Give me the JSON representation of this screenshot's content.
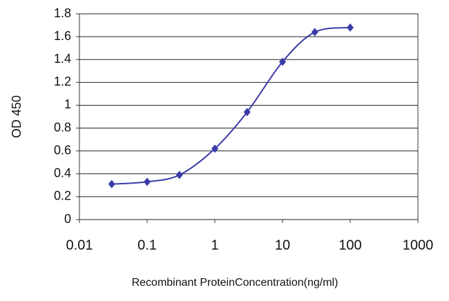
{
  "chart_data": {
    "type": "line",
    "x_label": "Recombinant ProteinConcentration(ng/ml)",
    "y_label": "OD 450",
    "x": [
      0.03,
      0.1,
      0.3,
      1,
      3,
      10,
      30,
      100
    ],
    "values": [
      0.31,
      0.33,
      0.39,
      0.62,
      0.94,
      1.38,
      1.64,
      1.68
    ],
    "color": "#3a3aa8",
    "xscale": "log",
    "xlim": [
      0.01,
      1000
    ],
    "xticks": [
      0.01,
      0.1,
      1,
      10,
      100,
      1000
    ],
    "ylim": [
      0,
      1.8
    ],
    "yticks": [
      0,
      0.2,
      0.4,
      0.6,
      0.8,
      1,
      1.2,
      1.4,
      1.6,
      1.8
    ],
    "grid": true
  }
}
